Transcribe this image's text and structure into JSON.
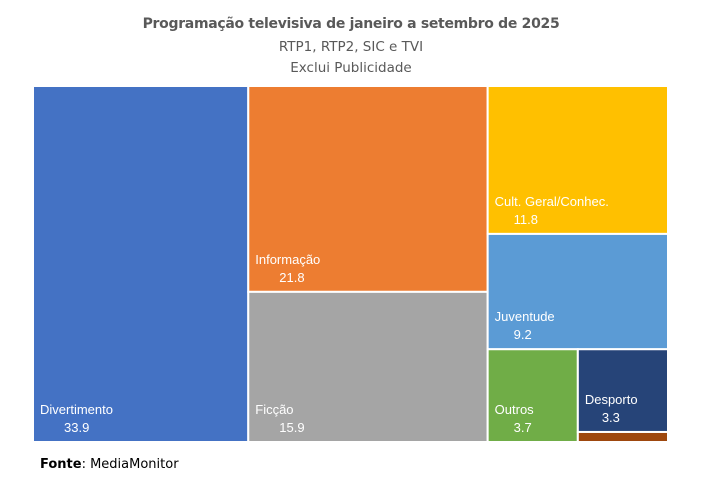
{
  "chart_data": {
    "type": "treemap",
    "title": "Programação televisiva de janeiro a setembro de 2025",
    "subtitles": [
      "RTP1, RTP2, SIC e TVI",
      "Exclui Publicidade"
    ],
    "items": [
      {
        "label": "Divertimento",
        "value": 33.9,
        "color": "#4472C4"
      },
      {
        "label": "Informação",
        "value": 21.8,
        "color": "#ED7D31"
      },
      {
        "label": "Ficção",
        "value": 15.9,
        "color": "#A5A5A5"
      },
      {
        "label": "Cult. Geral/Conhec.",
        "value": 11.8,
        "color": "#FFC000"
      },
      {
        "label": "Juventude",
        "value": 9.2,
        "color": "#5B9BD5"
      },
      {
        "label": "Outros",
        "value": 3.7,
        "color": "#70AD47"
      },
      {
        "label": "Desporto",
        "value": 3.3,
        "color": "#264478"
      },
      {
        "label": "",
        "value": 0.4,
        "color": "#9E480E"
      }
    ]
  },
  "source": {
    "label": "Fonte",
    "text": ": MediaMonitor"
  }
}
